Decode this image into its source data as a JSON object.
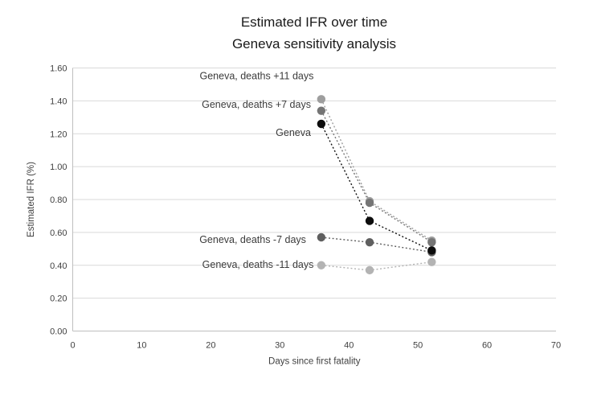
{
  "chart_data": {
    "type": "scatter",
    "title_line1": "Estimated IFR over time",
    "title_line2": "Geneva sensitivity analysis",
    "xlabel": "Days since first fatality",
    "ylabel": "Estimated IFR (%)",
    "xlim": [
      0,
      70
    ],
    "ylim": [
      0,
      1.6
    ],
    "xticks": [
      0,
      10,
      20,
      30,
      40,
      50,
      60,
      70
    ],
    "yticks": [
      0.0,
      0.2,
      0.4,
      0.6,
      0.8,
      1.0,
      1.2,
      1.4,
      1.6
    ],
    "ytick_labels": [
      "0.00",
      "0.20",
      "0.40",
      "0.60",
      "0.80",
      "1.00",
      "1.20",
      "1.40",
      "1.60"
    ],
    "grid": true,
    "legend": "none",
    "line_style": "dotted",
    "x": [
      36,
      43,
      52
    ],
    "series": [
      {
        "name": "Geneva, deaths +11 days",
        "color": "#9e9e9e",
        "values": [
          1.41,
          0.79,
          0.55
        ]
      },
      {
        "name": "Geneva, deaths +7 days",
        "color": "#757575",
        "values": [
          1.34,
          0.78,
          0.54
        ]
      },
      {
        "name": "Geneva",
        "color": "#0d0d0d",
        "values": [
          1.26,
          0.67,
          0.49
        ]
      },
      {
        "name": "Geneva, deaths -7 days",
        "color": "#5f5f5f",
        "values": [
          0.57,
          0.54,
          0.48
        ]
      },
      {
        "name": "Geneva, deaths -11 days",
        "color": "#b3b3b3",
        "values": [
          0.4,
          0.37,
          0.42
        ]
      }
    ],
    "annotations": [
      {
        "text": "Geneva, deaths +11 days",
        "day": 34.9,
        "value": 1.55
      },
      {
        "text": "Geneva, deaths +7 days",
        "day": 34.5,
        "value": 1.378
      },
      {
        "text": "Geneva",
        "day": 34.5,
        "value": 1.207
      },
      {
        "text": "Geneva, deaths -7 days",
        "day": 33.8,
        "value": 0.555
      },
      {
        "text": "Geneva, deaths -11 days",
        "day": 34.9,
        "value": 0.403
      }
    ]
  },
  "colors": {
    "background": "#ffffff",
    "gridline": "#d9d9d9",
    "axis_line": "#bfbfbf",
    "tick_text": "#404040",
    "title_text": "#1a1a1a"
  }
}
